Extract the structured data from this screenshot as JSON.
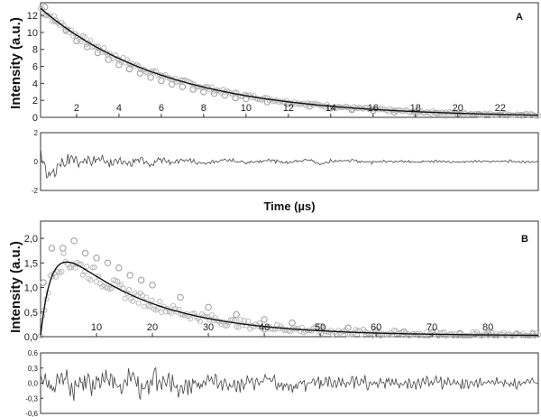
{
  "chart_data": [
    {
      "type": "scatter",
      "panel_label": "A",
      "ylabel": "Intensity (a.u.)",
      "xlabel": "Time (µs)",
      "xlim": [
        0.3,
        23.8
      ],
      "ylim": [
        0,
        13.5
      ],
      "x_ticks": [
        "2",
        "4",
        "6",
        "8",
        "10",
        "12",
        "14",
        "16",
        "18",
        "20",
        "22"
      ],
      "x_tick_values": [
        2,
        4,
        6,
        8,
        10,
        12,
        14,
        16,
        18,
        20,
        22
      ],
      "y_ticks": [
        "0",
        "2",
        "4",
        "6",
        "8",
        "10",
        "12"
      ],
      "y_tick_values": [
        0,
        2,
        4,
        6,
        8,
        10,
        12
      ],
      "fit": {
        "model": "single exponential decay",
        "amplitude": 13.5,
        "tau": 6.0
      },
      "series": [
        {
          "name": "",
          "x": [
            0.5,
            1,
            1.5,
            2,
            2.5,
            3,
            3.5,
            4,
            4.5,
            5,
            5.5,
            6,
            6.5,
            7,
            7.5,
            8,
            8.5,
            9,
            9.5,
            10,
            11,
            12,
            13,
            14,
            15,
            16,
            17,
            18,
            19,
            20,
            21,
            22,
            23
          ],
          "values": [
            13.0,
            11.4,
            10.3,
            9.0,
            8.3,
            7.6,
            6.8,
            6.2,
            5.7,
            5.2,
            4.7,
            4.3,
            3.9,
            3.6,
            3.3,
            3.0,
            2.8,
            2.6,
            2.3,
            2.2,
            1.8,
            1.6,
            1.3,
            1.1,
            0.9,
            0.8,
            0.6,
            0.5,
            0.5,
            0.4,
            0.35,
            0.3,
            0.25
          ]
        }
      ],
      "residuals": {
        "ylim": [
          -2,
          2
        ],
        "y_ticks": [
          "-2",
          "0",
          "2"
        ],
        "y_tick_values": [
          -2,
          0,
          2
        ],
        "x": [
          0.3,
          0.6,
          0.9,
          1.2,
          1.5,
          1.8,
          2.1,
          2.4,
          2.7,
          3.0,
          3.5,
          4,
          4.5,
          5,
          5.5,
          6,
          6.5,
          7,
          8,
          9,
          10,
          11,
          12,
          13,
          13.5,
          14,
          15,
          16,
          17,
          18,
          19,
          20,
          21,
          22,
          23
        ],
        "values": [
          1.6,
          -1.2,
          -1.6,
          -0.4,
          -0.2,
          0.9,
          -0.3,
          0.3,
          -0.7,
          0.4,
          -0.3,
          0.6,
          -0.4,
          0.3,
          -0.5,
          0.5,
          -0.3,
          0.4,
          -0.3,
          0.3,
          -0.2,
          0.2,
          -0.2,
          0.3,
          -0.5,
          0.1,
          0.2,
          -0.15,
          0.1,
          -0.1,
          0.1,
          -0.1,
          0.05,
          0.05,
          0.0
        ]
      }
    },
    {
      "type": "scatter",
      "panel_label": "B",
      "ylabel": "Intensity (a.u.)",
      "xlim": [
        0,
        89
      ],
      "ylim": [
        0,
        2.35
      ],
      "x_ticks": [
        "10",
        "20",
        "30",
        "40",
        "50",
        "60",
        "70",
        "80"
      ],
      "x_tick_values": [
        10,
        20,
        30,
        40,
        50,
        60,
        70,
        80
      ],
      "y_ticks": [
        "0,0",
        "0,5",
        "1,0",
        "1,5",
        "2,0"
      ],
      "y_tick_values": [
        0,
        0.5,
        1.0,
        1.5,
        2.0
      ],
      "fit": {
        "model": "rise and decay",
        "amplitude": 2.28,
        "tau_decay": 16,
        "tau_rise": 2.2
      },
      "series": [
        {
          "name": "",
          "x": [
            0.5,
            2,
            4,
            6,
            8,
            10,
            12,
            14,
            16,
            18,
            20,
            25,
            30,
            35,
            40,
            45,
            50,
            55,
            60,
            65,
            70,
            75,
            80,
            85,
            88
          ],
          "values": [
            1.1,
            1.8,
            1.8,
            1.95,
            1.7,
            1.6,
            1.5,
            1.4,
            1.25,
            1.15,
            1.05,
            0.8,
            0.6,
            0.45,
            0.35,
            0.28,
            0.2,
            0.18,
            0.12,
            0.1,
            0.08,
            0.07,
            0.06,
            0.05,
            0.05
          ]
        }
      ],
      "residuals": {
        "ylim": [
          -0.6,
          0.6
        ],
        "y_ticks": [
          "0,6",
          "0,3",
          "0,0",
          "-0,3",
          "-0,6"
        ],
        "y_tick_values": [
          0.6,
          0.3,
          0,
          -0.3,
          -0.6
        ],
        "x": [
          0,
          2,
          4,
          6,
          8,
          10,
          12,
          14,
          16,
          18,
          20,
          25,
          30,
          35,
          40,
          45,
          50,
          55,
          60,
          65,
          70,
          75,
          80,
          85,
          88
        ],
        "values": [
          0.3,
          -0.35,
          0.4,
          -0.3,
          0.35,
          -0.3,
          0.25,
          -0.25,
          0.2,
          -0.2,
          0.2,
          -0.15,
          0.15,
          -0.12,
          0.12,
          -0.1,
          0.1,
          -0.08,
          0.08,
          -0.06,
          0.06,
          -0.05,
          0.05,
          -0.04,
          0.03
        ]
      }
    }
  ]
}
